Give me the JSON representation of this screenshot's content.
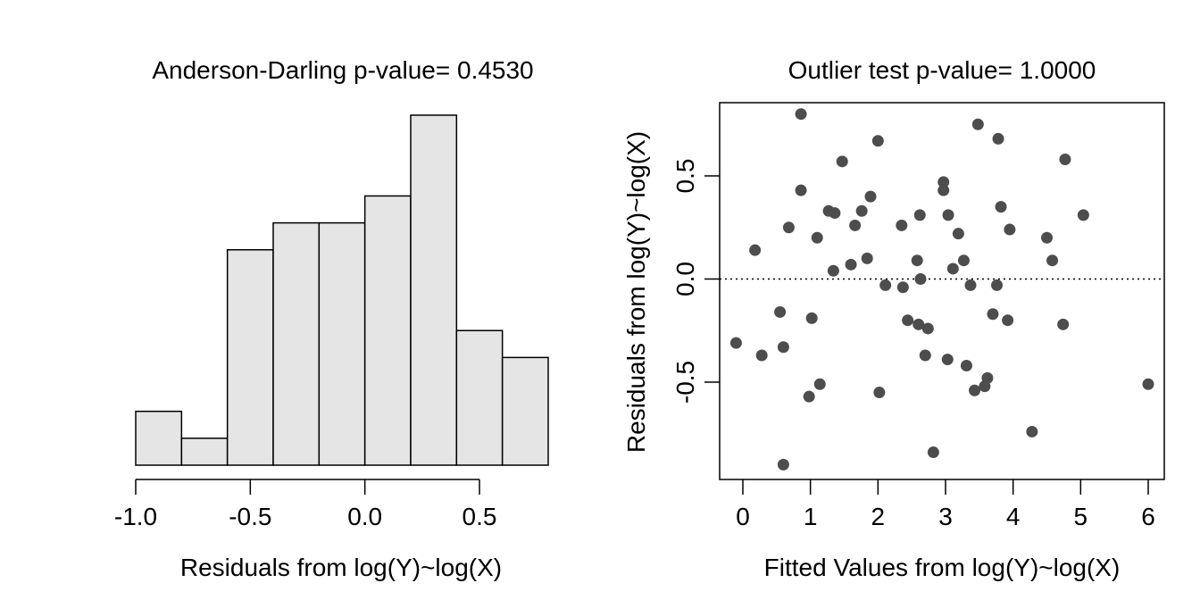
{
  "colors": {
    "bar_fill": "#e5e5e5",
    "bar_stroke": "#000000",
    "point": "#4d4d4d",
    "axis": "#000000",
    "background": "#ffffff"
  },
  "chart_data": [
    {
      "type": "histogram",
      "title": "Anderson-Darling p-value= 0.4530",
      "xlabel": "Residuals from log(Y)~log(X)",
      "ylabel": "",
      "xlim": [
        -1.0,
        0.8
      ],
      "x_ticks": [
        -1.0,
        -0.5,
        0.0,
        0.5
      ],
      "x_tick_labels": [
        "-1.0",
        "-0.5",
        "0.0",
        "0.5"
      ],
      "y_axis_shown": false,
      "frame": false,
      "bins": [
        {
          "start": -1.0,
          "end": -0.8,
          "count": 2
        },
        {
          "start": -0.8,
          "end": -0.6,
          "count": 1
        },
        {
          "start": -0.6,
          "end": -0.4,
          "count": 8
        },
        {
          "start": -0.4,
          "end": -0.2,
          "count": 9
        },
        {
          "start": -0.2,
          "end": 0.0,
          "count": 9
        },
        {
          "start": 0.0,
          "end": 0.2,
          "count": 10
        },
        {
          "start": 0.2,
          "end": 0.4,
          "count": 13
        },
        {
          "start": 0.4,
          "end": 0.6,
          "count": 5
        },
        {
          "start": 0.6,
          "end": 0.8,
          "count": 4
        }
      ]
    },
    {
      "type": "scatter",
      "title": "Outlier test p-value= 1.0000",
      "xlabel": "Fitted Values from log(Y)~log(X)",
      "ylabel": "Residuals from log(Y)~log(X)",
      "xlim": [
        -0.38,
        6.25
      ],
      "ylim": [
        -0.97,
        0.87
      ],
      "x_ticks": [
        0,
        1,
        2,
        3,
        4,
        5,
        6
      ],
      "x_tick_labels": [
        "0",
        "1",
        "2",
        "3",
        "4",
        "5",
        "6"
      ],
      "y_ticks": [
        -0.5,
        0.0,
        0.5
      ],
      "y_tick_labels": [
        "-0.5",
        "0.0",
        "0.5"
      ],
      "reference_line": {
        "y": 0.0,
        "style": "dotted"
      },
      "frame": true,
      "points": [
        {
          "x": -0.1,
          "y": -0.31
        },
        {
          "x": 0.18,
          "y": 0.14
        },
        {
          "x": 0.28,
          "y": -0.37
        },
        {
          "x": 0.55,
          "y": -0.16
        },
        {
          "x": 0.6,
          "y": -0.33
        },
        {
          "x": 0.6,
          "y": -0.9
        },
        {
          "x": 0.68,
          "y": 0.25
        },
        {
          "x": 0.86,
          "y": 0.8
        },
        {
          "x": 0.86,
          "y": 0.43
        },
        {
          "x": 0.98,
          "y": -0.57
        },
        {
          "x": 1.02,
          "y": -0.19
        },
        {
          "x": 1.1,
          "y": 0.2
        },
        {
          "x": 1.14,
          "y": -0.51
        },
        {
          "x": 1.27,
          "y": 0.33
        },
        {
          "x": 1.34,
          "y": 0.04
        },
        {
          "x": 1.36,
          "y": 0.32
        },
        {
          "x": 1.47,
          "y": 0.57
        },
        {
          "x": 1.6,
          "y": 0.07
        },
        {
          "x": 1.66,
          "y": 0.26
        },
        {
          "x": 1.76,
          "y": 0.33
        },
        {
          "x": 1.84,
          "y": 0.1
        },
        {
          "x": 1.89,
          "y": 0.4
        },
        {
          "x": 2.0,
          "y": 0.67
        },
        {
          "x": 2.02,
          "y": -0.55
        },
        {
          "x": 2.11,
          "y": -0.03
        },
        {
          "x": 2.35,
          "y": 0.26
        },
        {
          "x": 2.37,
          "y": -0.04
        },
        {
          "x": 2.44,
          "y": -0.2
        },
        {
          "x": 2.58,
          "y": 0.09
        },
        {
          "x": 2.6,
          "y": -0.22
        },
        {
          "x": 2.62,
          "y": 0.31
        },
        {
          "x": 2.63,
          "y": 0.0
        },
        {
          "x": 2.7,
          "y": -0.37
        },
        {
          "x": 2.74,
          "y": -0.24
        },
        {
          "x": 2.82,
          "y": -0.84
        },
        {
          "x": 2.97,
          "y": 0.47
        },
        {
          "x": 2.97,
          "y": 0.43
        },
        {
          "x": 3.03,
          "y": -0.39
        },
        {
          "x": 3.04,
          "y": 0.31
        },
        {
          "x": 3.11,
          "y": 0.05
        },
        {
          "x": 3.19,
          "y": 0.22
        },
        {
          "x": 3.27,
          "y": 0.09
        },
        {
          "x": 3.31,
          "y": -0.42
        },
        {
          "x": 3.37,
          "y": -0.03
        },
        {
          "x": 3.43,
          "y": -0.54
        },
        {
          "x": 3.48,
          "y": 0.75
        },
        {
          "x": 3.58,
          "y": -0.52
        },
        {
          "x": 3.62,
          "y": -0.48
        },
        {
          "x": 3.7,
          "y": -0.17
        },
        {
          "x": 3.76,
          "y": -0.03
        },
        {
          "x": 3.78,
          "y": 0.68
        },
        {
          "x": 3.82,
          "y": 0.35
        },
        {
          "x": 3.92,
          "y": -0.2
        },
        {
          "x": 3.95,
          "y": 0.24
        },
        {
          "x": 4.28,
          "y": -0.74
        },
        {
          "x": 4.5,
          "y": 0.2
        },
        {
          "x": 4.58,
          "y": 0.09
        },
        {
          "x": 4.74,
          "y": -0.22
        },
        {
          "x": 4.77,
          "y": 0.58
        },
        {
          "x": 5.04,
          "y": 0.31
        },
        {
          "x": 6.0,
          "y": -0.51
        }
      ]
    }
  ]
}
